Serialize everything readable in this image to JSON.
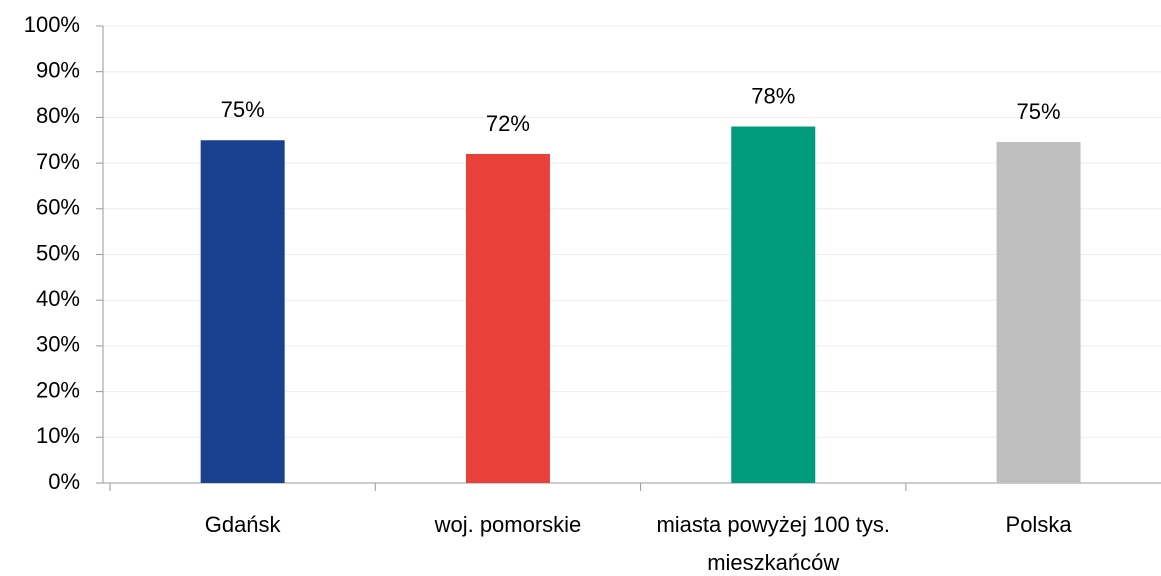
{
  "chart_data": {
    "type": "bar",
    "categories": [
      "Gdańsk",
      "woj. pomorskie",
      "miasta powyżej 100 tys. mieszkańców",
      "Polska"
    ],
    "values": [
      75,
      72,
      78,
      74.6
    ],
    "value_labels": [
      "75%",
      "72%",
      "78%",
      "75%"
    ],
    "colors": [
      "#1a4190",
      "#e8413a",
      "#009b7d",
      "#bfbfbf"
    ],
    "ylim": [
      0,
      100
    ],
    "yticks": [
      {
        "value": 0,
        "label": "0%"
      },
      {
        "value": 10,
        "label": "10%"
      },
      {
        "value": 20,
        "label": "20%"
      },
      {
        "value": 30,
        "label": "30%"
      },
      {
        "value": 40,
        "label": "40%"
      },
      {
        "value": 50,
        "label": "50%"
      },
      {
        "value": 60,
        "label": "60%"
      },
      {
        "value": 70,
        "label": "70%"
      },
      {
        "value": 80,
        "label": "80%"
      },
      {
        "value": 90,
        "label": "90%"
      },
      {
        "value": 100,
        "label": "100%"
      }
    ],
    "grid": true
  }
}
